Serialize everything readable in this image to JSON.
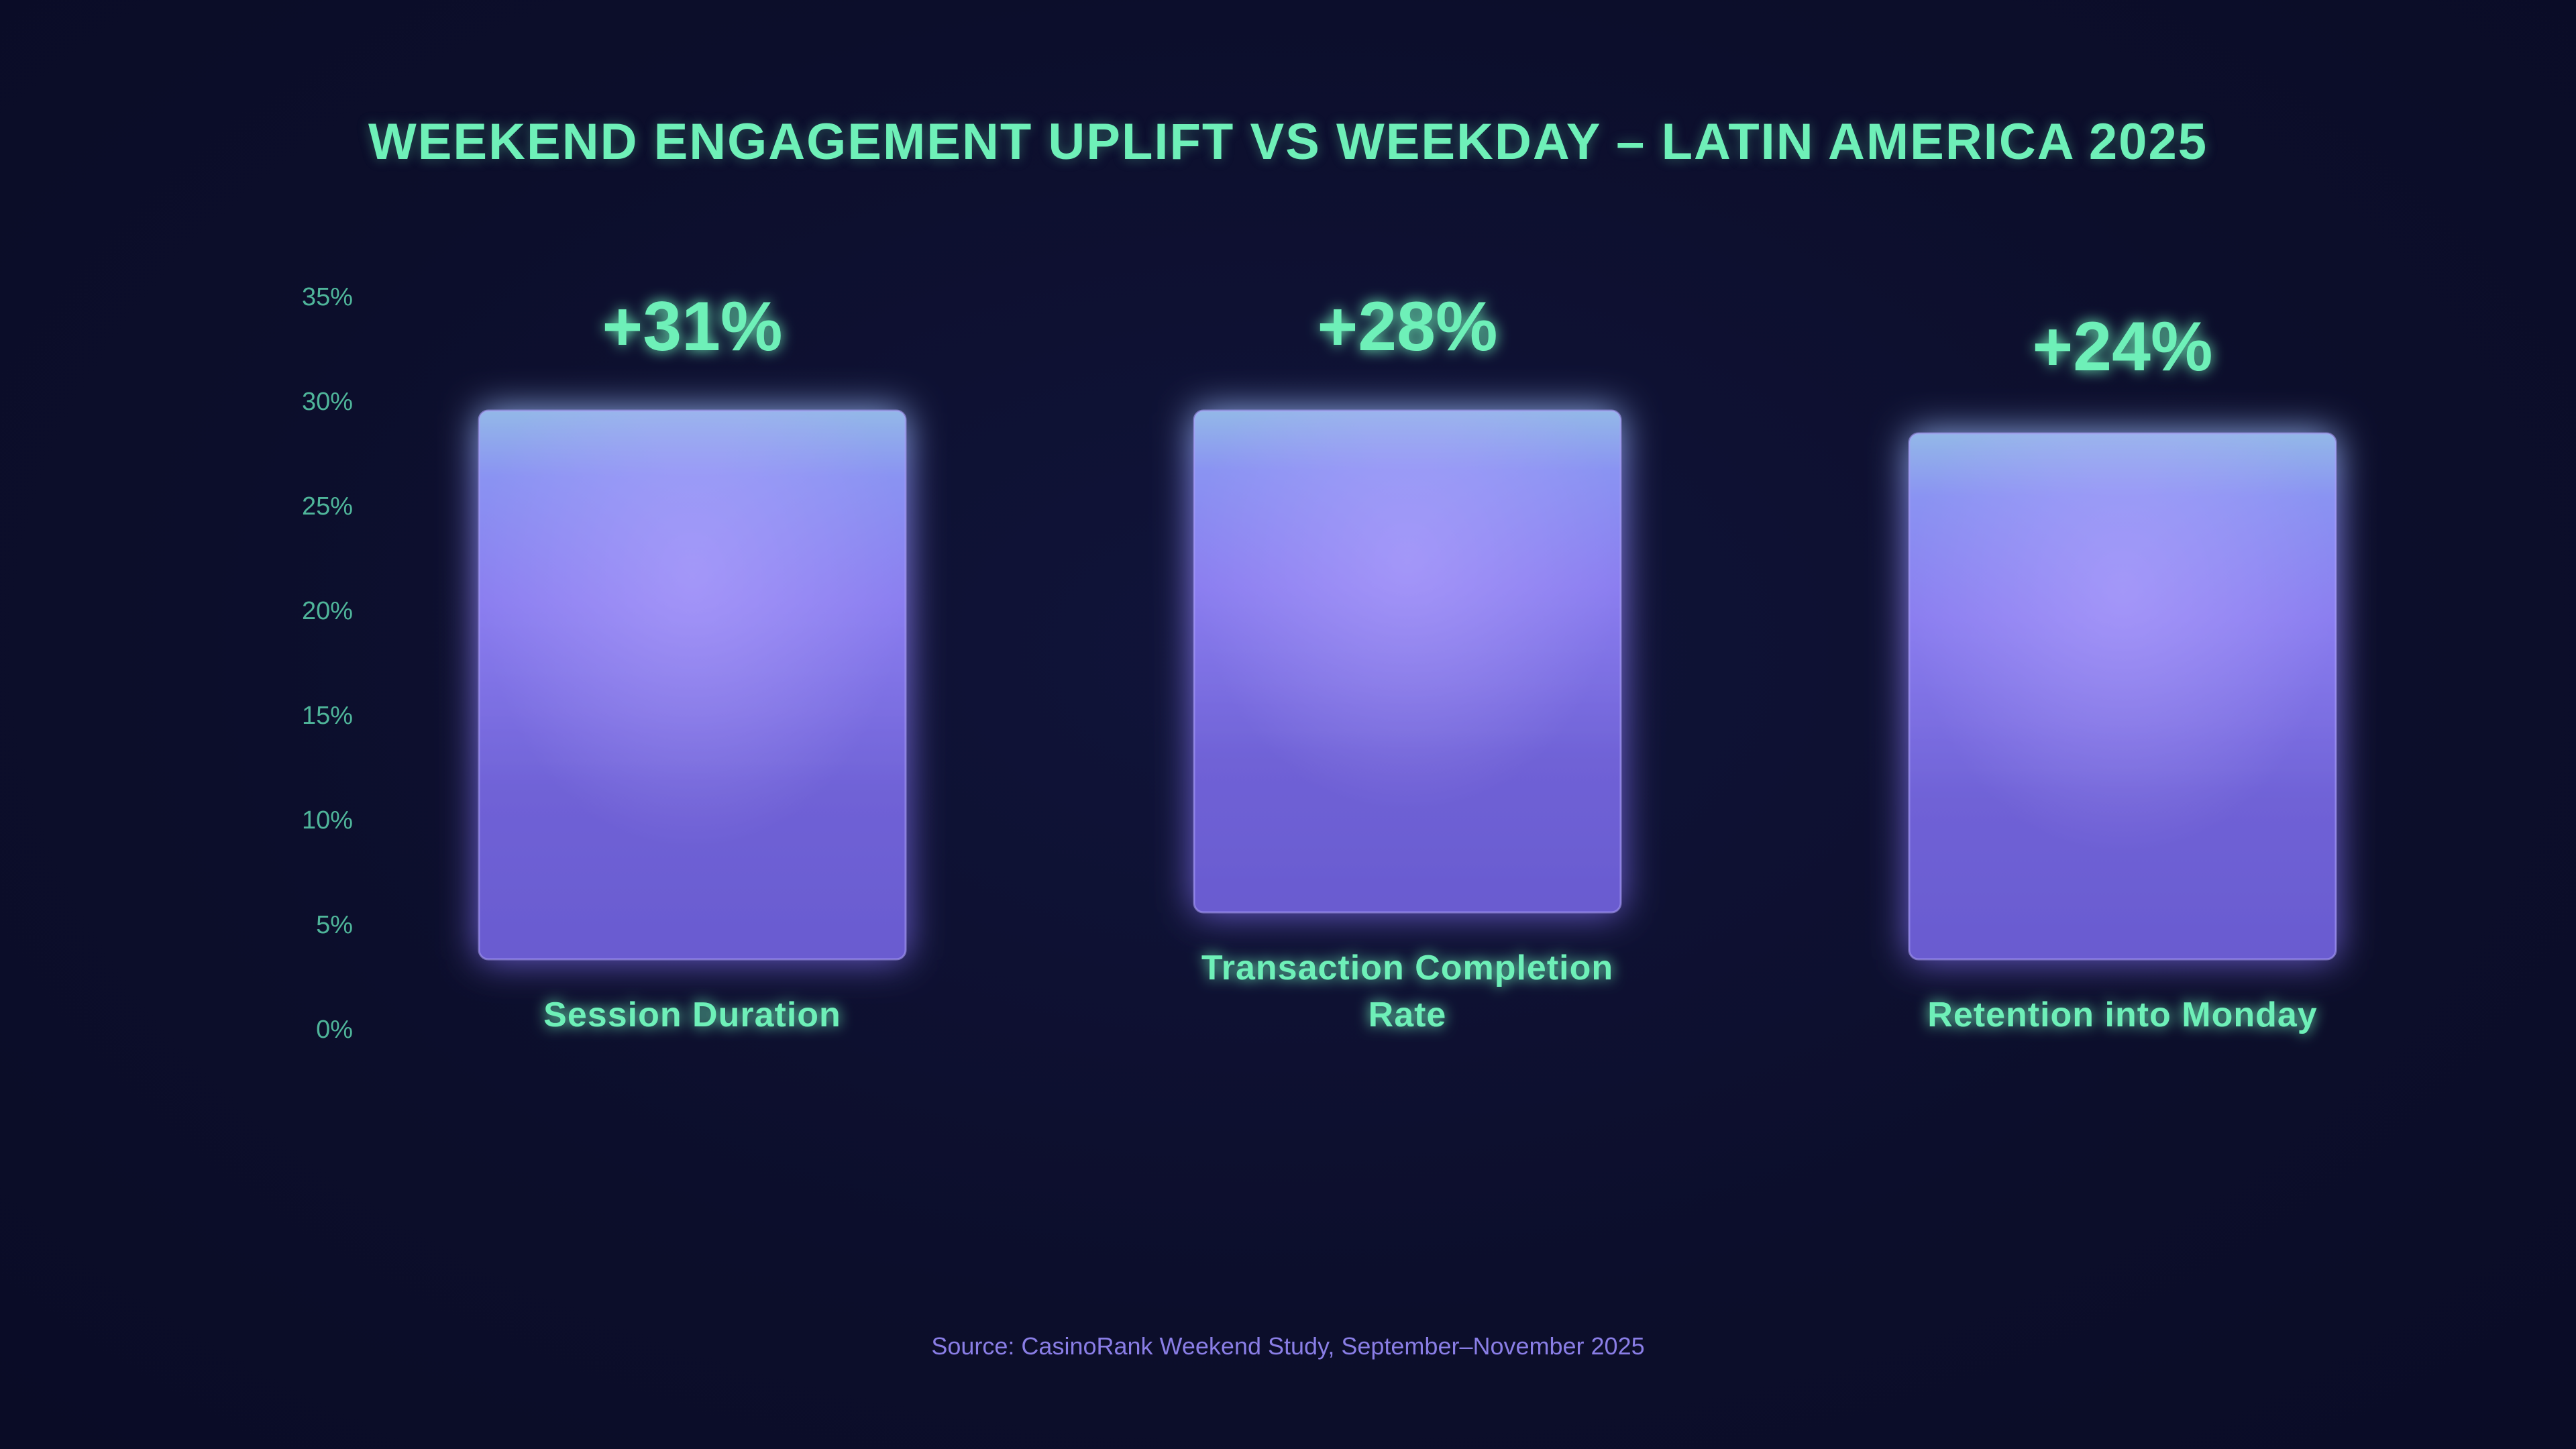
{
  "chart_data": {
    "type": "bar",
    "title": "WEEKEND ENGAGEMENT UPLIFT VS WEEKDAY – LATIN AMERICA 2025",
    "categories": [
      "Session Duration",
      "Transaction Completion Rate",
      "Retention into Monday"
    ],
    "category_lines": [
      [
        "Session Duration"
      ],
      [
        "Transaction Completion",
        "Rate"
      ],
      [
        "Retention into Monday"
      ]
    ],
    "values": [
      31,
      28,
      24
    ],
    "value_labels": [
      "+31%",
      "+28%",
      "+24%"
    ],
    "ylim": [
      0,
      35
    ],
    "yticks": [
      0,
      5,
      10,
      15,
      20,
      25,
      30,
      35
    ],
    "ytick_labels": [
      "0%",
      "5%",
      "10%",
      "15%",
      "20%",
      "25%",
      "30%",
      "35%"
    ],
    "xlabel": "",
    "ylabel": "",
    "grid": false,
    "colors": {
      "bar_top": "#93b8e8",
      "bar_mid": "#8b7ef0",
      "bar_bottom": "#6a5bd0",
      "accent_text": "#6ef0b8",
      "tick_text": "#4fb59a",
      "source_text": "#8a7ee6",
      "background": "#0d0f2e"
    }
  },
  "source": "Source: CasinoRank Weekend Study, September–November 2025"
}
